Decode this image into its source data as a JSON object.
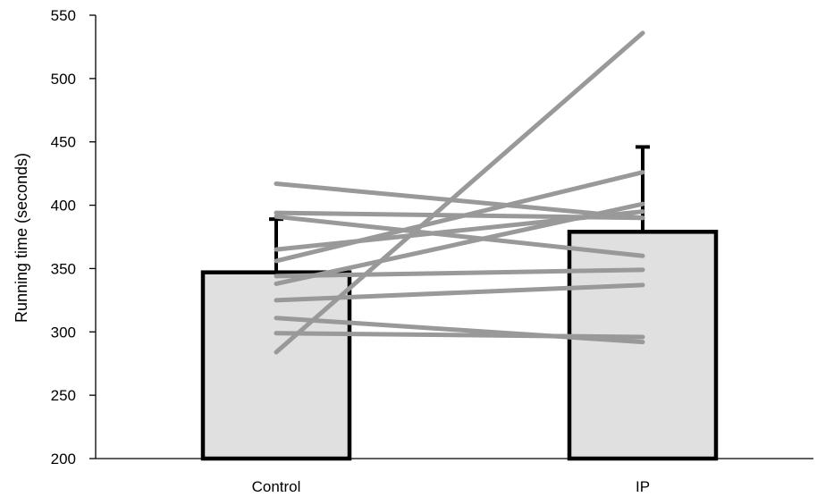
{
  "chart_data": {
    "type": "bar",
    "categories": [
      "Control",
      "IP"
    ],
    "values": [
      347,
      379
    ],
    "error_upper": [
      389,
      446
    ],
    "ylabel": "Running time (seconds)",
    "xlabel": "",
    "ylim": [
      200,
      550
    ],
    "yticks": [
      200,
      250,
      300,
      350,
      400,
      450,
      500,
      550
    ],
    "grid": false,
    "bar_fill": "#e0e0e0",
    "bar_stroke": "#000000",
    "line_color": "#999999",
    "individual_lines": [
      {
        "control": 284,
        "ip": 536
      },
      {
        "control": 417,
        "ip": 390
      },
      {
        "control": 394,
        "ip": 390
      },
      {
        "control": 391,
        "ip": 360
      },
      {
        "control": 365,
        "ip": 395
      },
      {
        "control": 356,
        "ip": 426
      },
      {
        "control": 344,
        "ip": 349
      },
      {
        "control": 338,
        "ip": 401
      },
      {
        "control": 325,
        "ip": 337
      },
      {
        "control": 311,
        "ip": 292
      },
      {
        "control": 299,
        "ip": 296
      }
    ]
  }
}
